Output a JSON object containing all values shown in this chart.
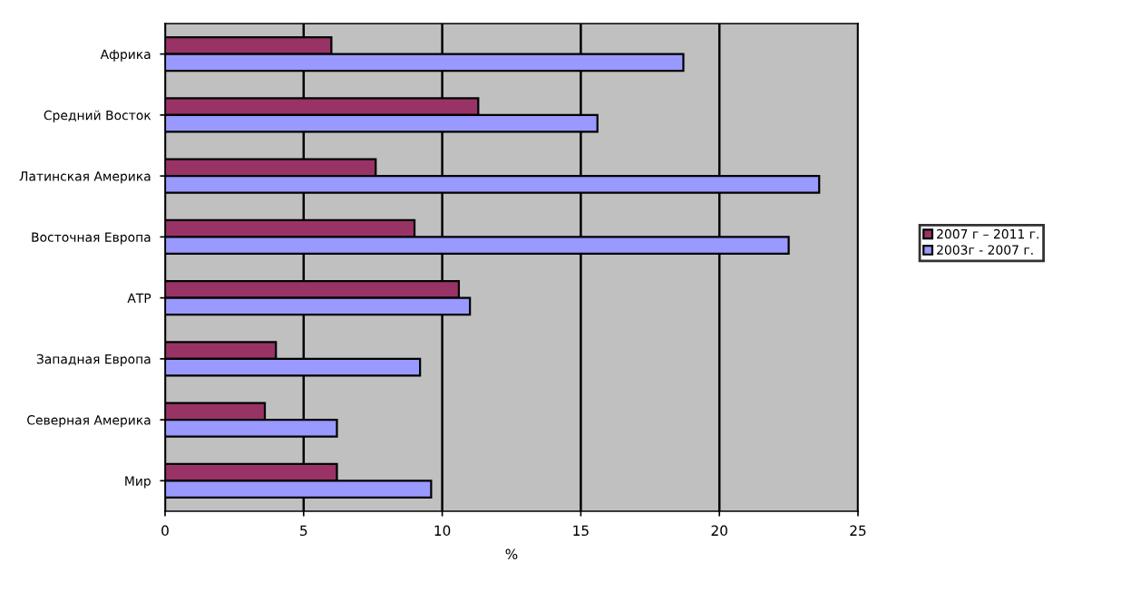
{
  "chart_data": {
    "type": "bar",
    "orientation": "horizontal",
    "xlabel": "%",
    "categories": [
      "Африка",
      "Средний Восток",
      "Латинская Америка",
      "Восточная Европа",
      "АТР",
      "Западная Европа",
      "Северная Америка",
      "Мир"
    ],
    "series": [
      {
        "name": "2007 г – 2011 г.",
        "color": "#993366",
        "values": [
          6.0,
          11.3,
          7.6,
          9.0,
          10.6,
          4.0,
          3.6,
          6.2
        ]
      },
      {
        "name": "2003г - 2007 г.",
        "color": "#9999ff",
        "values": [
          18.7,
          15.6,
          23.6,
          22.5,
          11.0,
          9.2,
          6.2,
          9.6
        ]
      }
    ],
    "xlim": [
      0,
      25
    ],
    "xticks": [
      0,
      5,
      10,
      15,
      20,
      25
    ],
    "grid": "x",
    "legend": "right"
  }
}
